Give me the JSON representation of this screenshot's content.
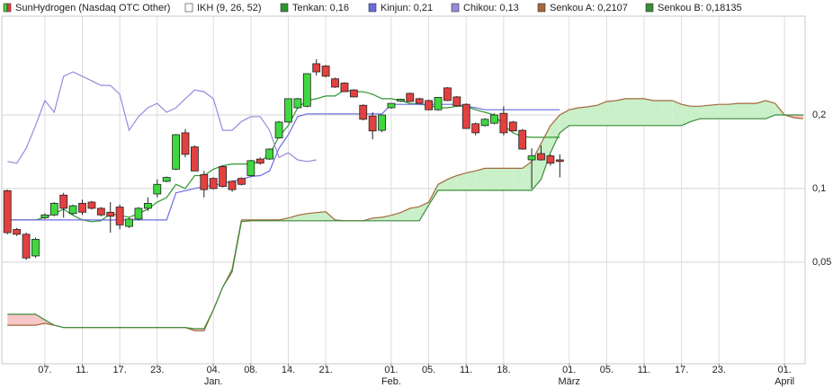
{
  "chart_data": {
    "type": "candlestick",
    "log_y": true,
    "grid": true,
    "ylim": [
      0.0192,
      0.507
    ],
    "yticks": [
      {
        "value": 0.2,
        "label": "0,2"
      },
      {
        "value": 0.1,
        "label": "0,1"
      },
      {
        "value": 0.05,
        "label": "0,05"
      }
    ],
    "xlim": [
      -0.6,
      85.2
    ],
    "xticks": [
      {
        "value": 4,
        "label": "07."
      },
      {
        "value": 8,
        "label": "11."
      },
      {
        "value": 12,
        "label": "17."
      },
      {
        "value": 16,
        "label": "23."
      },
      {
        "value": 22,
        "label": "04."
      },
      {
        "value": 26,
        "label": "08."
      },
      {
        "value": 30,
        "label": "14."
      },
      {
        "value": 34,
        "label": "21."
      },
      {
        "value": 41,
        "label": "01."
      },
      {
        "value": 45,
        "label": "05."
      },
      {
        "value": 49,
        "label": "11."
      },
      {
        "value": 53,
        "label": "18."
      },
      {
        "value": 60,
        "label": "01."
      },
      {
        "value": 64,
        "label": "05."
      },
      {
        "value": 68,
        "label": "11."
      },
      {
        "value": 72,
        "label": "17."
      },
      {
        "value": 76,
        "label": "23."
      },
      {
        "value": 83,
        "label": "01."
      }
    ],
    "x_month_ticks": [
      {
        "value": 22,
        "label": "Jan."
      },
      {
        "value": 41,
        "label": "Feb."
      },
      {
        "value": 60,
        "label": "März"
      },
      {
        "value": 83,
        "label": "April"
      }
    ],
    "indicator_label": "IKH (9, 26, 52)",
    "cloud_colors": [
      "#c9f0c9",
      "#f7c6c6"
    ],
    "series": [
      {
        "name": "SunHydrogen (Nasdaq OTC Other)",
        "type": "candlestick",
        "up_color": "#3fd83f",
        "down_color": "#e2413f",
        "open": [
          0.098,
          0.068,
          0.065,
          0.053,
          0.076,
          0.078,
          0.094,
          0.079,
          0.087,
          0.088,
          0.083,
          0.08,
          0.084,
          0.07,
          0.075,
          0.083,
          0.095,
          0.107,
          0.12,
          0.169,
          0.148,
          0.114,
          0.11,
          0.123,
          0.107,
          0.11,
          0.113,
          0.132,
          0.132,
          0.161,
          0.187,
          0.214,
          0.217,
          0.324,
          0.317,
          0.281,
          0.27,
          0.253,
          0.219,
          0.198,
          0.173,
          0.214,
          0.228,
          0.245,
          0.233,
          0.229,
          0.21,
          0.258,
          0.237,
          0.221,
          0.184,
          0.181,
          0.185,
          0.203,
          0.187,
          0.173,
          0.131,
          0.139,
          0.136,
          0.131
        ],
        "high": [
          0.099,
          0.069,
          0.066,
          0.063,
          0.079,
          0.088,
          0.096,
          0.086,
          0.09,
          0.089,
          0.084,
          0.088,
          0.086,
          0.076,
          0.084,
          0.092,
          0.109,
          0.112,
          0.167,
          0.175,
          0.15,
          0.118,
          0.111,
          0.124,
          0.108,
          0.111,
          0.131,
          0.134,
          0.146,
          0.189,
          0.233,
          0.235,
          0.296,
          0.338,
          0.32,
          0.284,
          0.272,
          0.255,
          0.221,
          0.205,
          0.2,
          0.224,
          0.233,
          0.247,
          0.235,
          0.231,
          0.237,
          0.26,
          0.239,
          0.223,
          0.186,
          0.194,
          0.203,
          0.217,
          0.189,
          0.175,
          0.146,
          0.15,
          0.138,
          0.138
        ],
        "low": [
          0.065,
          0.064,
          0.051,
          0.052,
          0.075,
          0.077,
          0.076,
          0.078,
          0.078,
          0.082,
          0.077,
          0.066,
          0.068,
          0.069,
          0.074,
          0.081,
          0.092,
          0.106,
          0.119,
          0.134,
          0.118,
          0.092,
          0.099,
          0.101,
          0.097,
          0.103,
          0.112,
          0.125,
          0.131,
          0.16,
          0.186,
          0.212,
          0.215,
          0.29,
          0.285,
          0.258,
          0.248,
          0.236,
          0.19,
          0.159,
          0.17,
          0.212,
          0.226,
          0.226,
          0.222,
          0.209,
          0.208,
          0.228,
          0.216,
          0.176,
          0.165,
          0.179,
          0.183,
          0.165,
          0.171,
          0.144,
          0.1,
          0.13,
          0.124,
          0.111
        ],
        "close": [
          0.066,
          0.065,
          0.052,
          0.062,
          0.078,
          0.087,
          0.083,
          0.085,
          0.08,
          0.083,
          0.078,
          0.077,
          0.071,
          0.075,
          0.083,
          0.087,
          0.104,
          0.111,
          0.166,
          0.138,
          0.118,
          0.099,
          0.1,
          0.102,
          0.099,
          0.104,
          0.13,
          0.127,
          0.145,
          0.187,
          0.233,
          0.233,
          0.295,
          0.3,
          0.288,
          0.26,
          0.249,
          0.237,
          0.192,
          0.172,
          0.2,
          0.223,
          0.232,
          0.227,
          0.223,
          0.21,
          0.236,
          0.229,
          0.218,
          0.176,
          0.169,
          0.192,
          0.2,
          0.169,
          0.172,
          0.145,
          0.136,
          0.131,
          0.127,
          0.129
        ]
      },
      {
        "name": "Tenkan: 0,16",
        "color": "#2f962f",
        "values": [
          0.0744,
          0.0744,
          0.0744,
          0.0744,
          0.0763,
          0.079,
          0.0823,
          0.0777,
          0.0744,
          0.0732,
          0.0738,
          0.079,
          0.0777,
          0.0763,
          0.079,
          0.0823,
          0.088,
          0.0918,
          0.104,
          0.1,
          0.113,
          0.113,
          0.12,
          0.124,
          0.126,
          0.126,
          0.126,
          0.129,
          0.138,
          0.163,
          0.181,
          0.214,
          0.229,
          0.233,
          0.239,
          0.239,
          0.253,
          0.249,
          0.249,
          0.243,
          0.233,
          0.233,
          0.229,
          0.223,
          0.221,
          0.219,
          0.214,
          0.214,
          0.217,
          0.217,
          0.21,
          0.205,
          0.2,
          0.181,
          0.169,
          0.163,
          0.162,
          0.162,
          0.162,
          0.162
        ]
      },
      {
        "name": "Kinjun: 0,21",
        "color": "#6b6be0",
        "values": [
          0.0744,
          0.0744,
          0.0744,
          0.0744,
          0.0744,
          0.0744,
          0.0744,
          0.0744,
          0.0744,
          0.0744,
          0.0744,
          0.0744,
          0.0744,
          0.0744,
          0.0744,
          0.0744,
          0.0744,
          0.0744,
          0.096,
          0.098,
          0.1,
          0.102,
          0.103,
          0.105,
          0.107,
          0.109,
          0.112,
          0.113,
          0.118,
          0.146,
          0.166,
          0.197,
          0.202,
          0.202,
          0.202,
          0.202,
          0.202,
          0.202,
          0.202,
          0.202,
          0.202,
          0.221,
          0.221,
          0.221,
          0.221,
          0.221,
          0.221,
          0.221,
          0.221,
          0.217,
          0.214,
          0.21,
          0.21,
          0.21,
          0.21,
          0.21,
          0.21,
          0.21,
          0.21,
          0.21
        ]
      },
      {
        "name": "Chikou: 0,13",
        "color": "#9a88dc",
        "values": [
          0.129,
          0.127,
          0.146,
          0.181,
          0.229,
          0.205,
          0.288,
          0.3,
          0.288,
          0.276,
          0.264,
          0.264,
          0.243,
          0.173,
          0.197,
          0.214,
          0.223,
          0.205,
          0.214,
          0.233,
          0.253,
          0.249,
          0.233,
          0.173,
          0.173,
          0.188,
          0.197,
          0.197,
          0.173,
          0.134,
          0.14,
          0.131,
          0.129,
          0.131
        ]
      },
      {
        "name": "Senkou A: 0,2107",
        "color": "#a4683c",
        "values": [
          0.0276,
          0.0276,
          0.0276,
          0.0276,
          0.0281,
          0.0276,
          0.027,
          0.027,
          0.027,
          0.027,
          0.027,
          0.027,
          0.027,
          0.027,
          0.027,
          0.027,
          0.027,
          0.027,
          0.027,
          0.027,
          0.0262,
          0.0262,
          0.0319,
          0.0395,
          0.0467,
          0.0744,
          0.0744,
          0.0744,
          0.0744,
          0.0744,
          0.0757,
          0.0777,
          0.079,
          0.0797,
          0.0803,
          0.0744,
          0.0738,
          0.0738,
          0.0738,
          0.0757,
          0.0763,
          0.0777,
          0.0797,
          0.083,
          0.0843,
          0.088,
          0.104,
          0.109,
          0.113,
          0.116,
          0.118,
          0.121,
          0.121,
          0.121,
          0.121,
          0.121,
          0.129,
          0.153,
          0.181,
          0.2,
          0.21,
          0.214,
          0.216,
          0.219,
          0.227,
          0.229,
          0.233,
          0.233,
          0.233,
          0.229,
          0.229,
          0.229,
          0.221,
          0.217,
          0.217,
          0.219,
          0.221,
          0.221,
          0.223,
          0.223,
          0.223,
          0.229,
          0.223,
          0.2,
          0.195,
          0.193
        ]
      },
      {
        "name": "Senkou B: 0,18135",
        "color": "#3b8c3b",
        "values": [
          0.0306,
          0.0306,
          0.0306,
          0.0306,
          0.029,
          0.0276,
          0.027,
          0.027,
          0.027,
          0.027,
          0.027,
          0.027,
          0.027,
          0.027,
          0.027,
          0.027,
          0.027,
          0.027,
          0.027,
          0.027,
          0.0267,
          0.0267,
          0.0319,
          0.0395,
          0.0456,
          0.0732,
          0.0738,
          0.0738,
          0.0738,
          0.0738,
          0.0738,
          0.0738,
          0.0738,
          0.0738,
          0.0738,
          0.0738,
          0.0738,
          0.0738,
          0.0738,
          0.0738,
          0.0738,
          0.0738,
          0.0738,
          0.0738,
          0.0738,
          0.0857,
          0.0983,
          0.0983,
          0.0983,
          0.0983,
          0.0983,
          0.0983,
          0.0983,
          0.0983,
          0.0983,
          0.0983,
          0.0983,
          0.109,
          0.14,
          0.169,
          0.181,
          0.181,
          0.181,
          0.181,
          0.181,
          0.181,
          0.181,
          0.181,
          0.181,
          0.181,
          0.181,
          0.181,
          0.181,
          0.188,
          0.193,
          0.193,
          0.193,
          0.193,
          0.193,
          0.193,
          0.193,
          0.193,
          0.2,
          0.2,
          0.2,
          0.2
        ]
      }
    ]
  }
}
